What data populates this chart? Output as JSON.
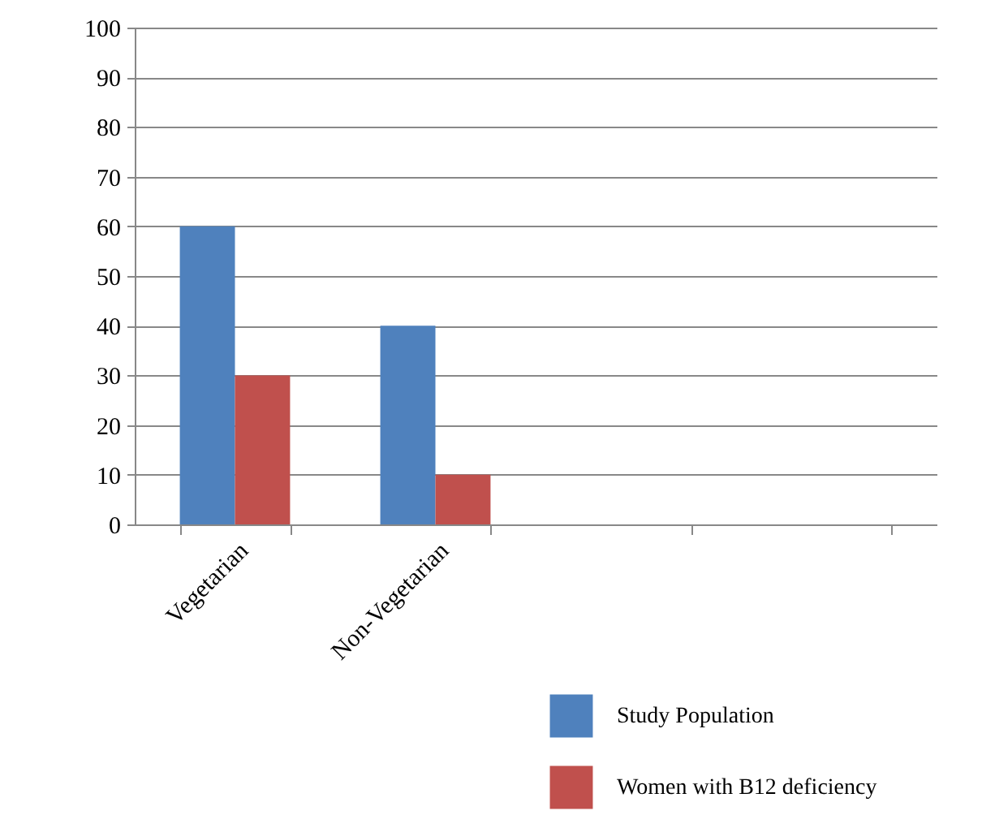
{
  "chart_data": {
    "type": "bar",
    "categories": [
      "Vegetarian",
      "Non-Vegetarian",
      null,
      null
    ],
    "series": [
      {
        "name": "Study Population",
        "color": "#4f81bd",
        "values": [
          60,
          40,
          null,
          null
        ]
      },
      {
        "name": "Women with B12 deficiency",
        "color": "#c0504d",
        "values": [
          30,
          10,
          null,
          null
        ]
      }
    ],
    "ylim": [
      0,
      100
    ],
    "yticks": [
      0,
      10,
      20,
      30,
      40,
      50,
      60,
      70,
      80,
      90,
      100
    ],
    "grid": "y",
    "legend": "bottom right"
  }
}
